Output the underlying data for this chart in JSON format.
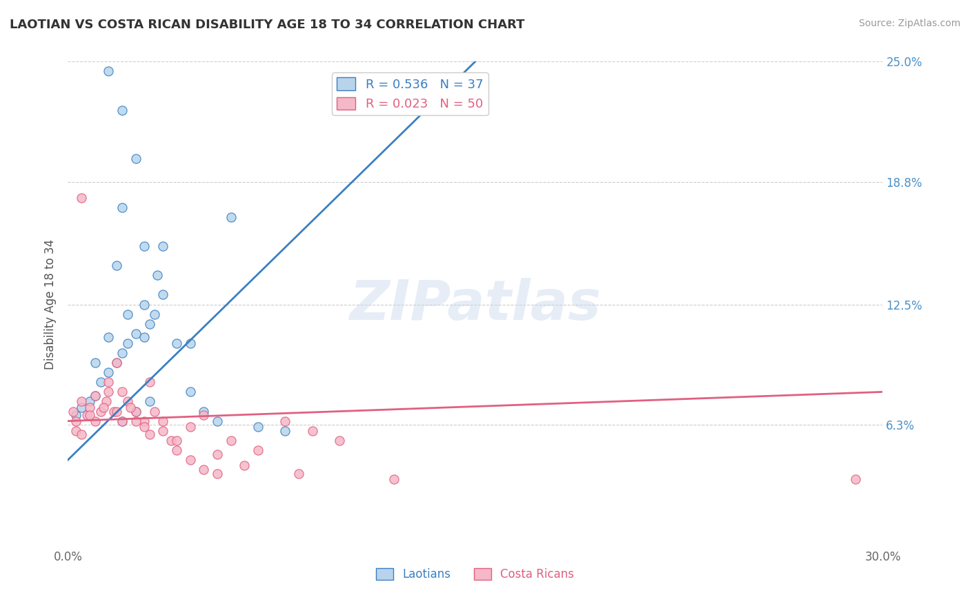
{
  "title": "LAOTIAN VS COSTA RICAN DISABILITY AGE 18 TO 34 CORRELATION CHART",
  "source": "Source: ZipAtlas.com",
  "xlabel": "",
  "ylabel": "Disability Age 18 to 34",
  "xlim": [
    0.0,
    30.0
  ],
  "ylim": [
    0.0,
    25.0
  ],
  "xtick_labels": [
    "0.0%",
    "30.0%"
  ],
  "ytick_positions": [
    6.3,
    12.5,
    18.8,
    25.0
  ],
  "ytick_labels": [
    "6.3%",
    "12.5%",
    "18.8%",
    "25.0%"
  ],
  "legend_labels": [
    "Laotians",
    "Costa Ricans"
  ],
  "laotian_R": 0.536,
  "laotian_N": 37,
  "costarican_R": 0.023,
  "costarican_N": 50,
  "laotian_color": "#b8d4ec",
  "costarican_color": "#f5b8c8",
  "laotian_line_color": "#3a7fc1",
  "costarican_line_color": "#e06080",
  "background_color": "#ffffff",
  "watermark": "ZIPatlas",
  "laotian_x": [
    0.3,
    0.5,
    0.8,
    1.0,
    1.2,
    1.5,
    1.8,
    2.0,
    2.2,
    2.5,
    2.8,
    3.0,
    3.2,
    3.5,
    4.0,
    4.5,
    5.0,
    6.0,
    1.5,
    2.0,
    2.5,
    2.0,
    2.8,
    3.3,
    1.0,
    1.5,
    2.2,
    2.8,
    1.8,
    3.5,
    4.5,
    5.5,
    7.0,
    8.0,
    2.0,
    2.5,
    3.0
  ],
  "laotian_y": [
    6.8,
    7.2,
    7.5,
    7.8,
    8.5,
    9.0,
    9.5,
    10.0,
    10.5,
    11.0,
    10.8,
    11.5,
    12.0,
    13.0,
    10.5,
    8.0,
    7.0,
    17.0,
    24.5,
    22.5,
    20.0,
    17.5,
    15.5,
    14.0,
    9.5,
    10.8,
    12.0,
    12.5,
    14.5,
    15.5,
    10.5,
    6.5,
    6.2,
    6.0,
    6.5,
    7.0,
    7.5
  ],
  "costarican_x": [
    0.2,
    0.3,
    0.5,
    0.7,
    0.8,
    1.0,
    1.2,
    1.4,
    1.5,
    1.7,
    1.8,
    2.0,
    2.2,
    2.5,
    2.8,
    3.0,
    3.2,
    3.5,
    3.8,
    4.0,
    4.5,
    5.0,
    5.5,
    6.0,
    7.0,
    8.0,
    9.0,
    10.0,
    12.0,
    29.0,
    0.3,
    0.5,
    0.8,
    1.0,
    1.3,
    1.5,
    1.8,
    2.0,
    2.3,
    2.5,
    2.8,
    3.0,
    3.5,
    4.0,
    4.5,
    5.0,
    5.5,
    6.5,
    8.5,
    0.5
  ],
  "costarican_y": [
    7.0,
    6.5,
    7.5,
    6.8,
    7.2,
    6.5,
    7.0,
    7.5,
    8.5,
    7.0,
    9.5,
    8.0,
    7.5,
    7.0,
    6.5,
    8.5,
    7.0,
    6.5,
    5.5,
    5.0,
    4.5,
    4.0,
    3.8,
    5.5,
    5.0,
    6.5,
    6.0,
    5.5,
    3.5,
    3.5,
    6.0,
    5.8,
    6.8,
    7.8,
    7.2,
    8.0,
    7.0,
    6.5,
    7.2,
    6.5,
    6.2,
    5.8,
    6.0,
    5.5,
    6.2,
    6.8,
    4.8,
    4.2,
    3.8,
    18.0
  ],
  "laotian_line_x0": 0.0,
  "laotian_line_y0": 4.5,
  "laotian_line_x1": 15.0,
  "laotian_line_y1": 25.0,
  "costarican_line_x0": 0.0,
  "costarican_line_y0": 6.5,
  "costarican_line_x1": 30.0,
  "costarican_line_y1": 8.0
}
